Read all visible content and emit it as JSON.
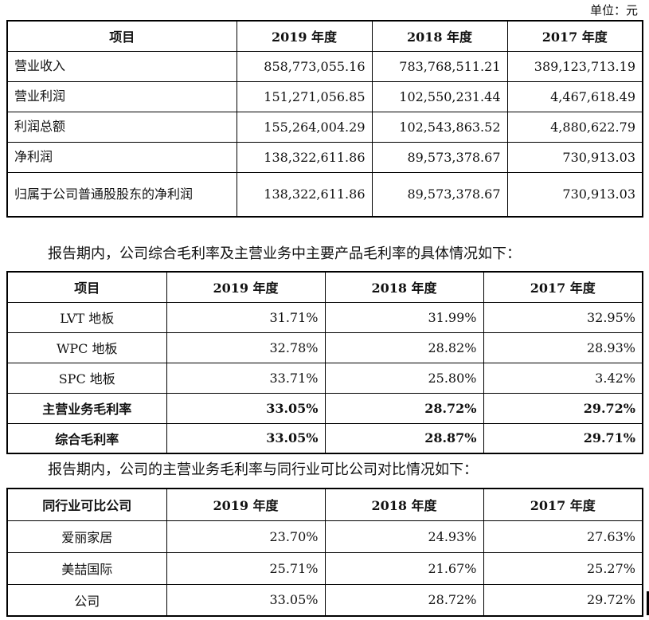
{
  "unit_label": "单位：元",
  "table1": {
    "headers": [
      "项目",
      "2019 年度",
      "2018 年度",
      "2017 年度"
    ],
    "rows": [
      [
        "营业收入",
        "858,773,055.16",
        "783,768,511.21",
        "389,123,713.19"
      ],
      [
        "营业利润",
        "151,271,056.85",
        "102,550,231.44",
        "4,467,618.49"
      ],
      [
        "利润总额",
        "155,264,004.29",
        "102,543,863.52",
        "4,880,622.79"
      ],
      [
        "净利润",
        "138,322,611.86",
        "89,573,378.67",
        "730,913.03"
      ],
      [
        "归属于公司普通股股东的净利润",
        "138,322,611.86",
        "89,573,378.67",
        "730,913.03"
      ]
    ]
  },
  "para1": "报告期内，公司综合毛利率及主营业务中主要产品毛利率的具体情况如下：",
  "table2": {
    "headers": [
      "项目",
      "2019 年度",
      "2018 年度",
      "2017 年度"
    ],
    "rows": [
      [
        "LVT 地板",
        "31.71%",
        "31.99%",
        "32.95%"
      ],
      [
        "WPC 地板",
        "32.78%",
        "28.82%",
        "28.93%"
      ],
      [
        "SPC 地板",
        "33.71%",
        "25.80%",
        "3.42%"
      ],
      [
        "主营业务毛利率",
        "33.05%",
        "28.72%",
        "29.72%"
      ],
      [
        "综合毛利率",
        "33.05%",
        "28.87%",
        "29.71%"
      ]
    ]
  },
  "para2": "报告期内，公司的主营业务毛利率与同行业可比公司对比情况如下：",
  "table3": {
    "headers": [
      "同行业可比公司",
      "2019 年度",
      "2018 年度",
      "2017 年度"
    ],
    "rows": [
      [
        "爱丽家居",
        "23.70%",
        "24.93%",
        "27.63%"
      ],
      [
        "美喆国际",
        "25.71%",
        "21.67%",
        "25.27%"
      ],
      [
        "公司",
        "33.05%",
        "28.72%",
        "29.72%"
      ]
    ]
  }
}
